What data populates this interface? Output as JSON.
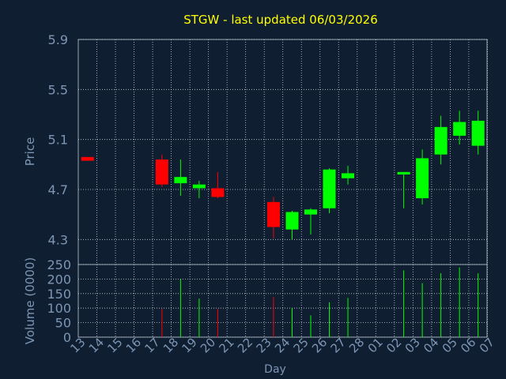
{
  "chart_data": [
    {
      "type": "candlestick",
      "title": "STGW - last updated 06/03/2026",
      "ylabel": "Price",
      "ylim": [
        4.1,
        5.9
      ],
      "yticks": [
        4.3,
        4.7,
        5.1,
        5.5,
        5.9
      ],
      "grid": true,
      "colors": {
        "up": "#00ff00",
        "down": "#ff0000"
      },
      "ohlc": [
        {
          "o": 4.96,
          "h": 4.96,
          "l": 4.93,
          "c": 4.93
        },
        {
          "o": 4.94,
          "h": 4.98,
          "l": 4.72,
          "c": 4.74
        },
        {
          "o": 4.75,
          "h": 4.94,
          "l": 4.65,
          "c": 4.8
        },
        {
          "o": 4.71,
          "h": 4.77,
          "l": 4.63,
          "c": 4.74
        },
        {
          "o": 4.71,
          "h": 4.84,
          "l": 4.63,
          "c": 4.64
        },
        {
          "o": 4.6,
          "h": 4.64,
          "l": 4.31,
          "c": 4.4
        },
        {
          "o": 4.38,
          "h": 4.53,
          "l": 4.3,
          "c": 4.52
        },
        {
          "o": 4.5,
          "h": 4.55,
          "l": 4.34,
          "c": 4.54
        },
        {
          "o": 4.55,
          "h": 4.87,
          "l": 4.51,
          "c": 4.86
        },
        {
          "o": 4.79,
          "h": 4.89,
          "l": 4.74,
          "c": 4.83
        },
        {
          "o": 4.82,
          "h": 4.84,
          "l": 4.55,
          "c": 4.84
        },
        {
          "o": 4.63,
          "h": 5.02,
          "l": 4.58,
          "c": 4.95
        },
        {
          "o": 4.98,
          "h": 5.29,
          "l": 4.9,
          "c": 5.2
        },
        {
          "o": 5.13,
          "h": 5.33,
          "l": 5.06,
          "c": 5.24
        },
        {
          "o": 5.05,
          "h": 5.33,
          "l": 4.98,
          "c": 5.25
        }
      ],
      "candle_slots": [
        0,
        4,
        5,
        6,
        7,
        10,
        11,
        12,
        13,
        14,
        17,
        18,
        19,
        20,
        21
      ]
    },
    {
      "type": "bar",
      "ylabel": "Volume (0000)",
      "ylim": [
        0,
        250
      ],
      "yticks": [
        0,
        50,
        100,
        150,
        200,
        250
      ],
      "xlabel": "Day",
      "grid": true,
      "categories": [
        "13",
        "14",
        "15",
        "16",
        "17",
        "18",
        "19",
        "20",
        "21",
        "22",
        "23",
        "24",
        "25",
        "26",
        "27",
        "28",
        "01",
        "02",
        "03",
        "04",
        "05",
        "06",
        "07"
      ],
      "series": [
        {
          "values": [
            0,
            0,
            0,
            0,
            97,
            200,
            133,
            97,
            0,
            0,
            138,
            100,
            75,
            120,
            135,
            0,
            0,
            230,
            186,
            220,
            240,
            220,
            0
          ],
          "colors": [
            "",
            "",
            "",
            "",
            "#ff0000",
            "#00ff00",
            "#00ff00",
            "#ff0000",
            "",
            "",
            "#ff0000",
            "#00ff00",
            "#00ff00",
            "#00ff00",
            "#00ff00",
            "",
            "",
            "#00ff00",
            "#00ff00",
            "#00ff00",
            "#00ff00",
            "#00ff00",
            ""
          ]
        }
      ]
    }
  ]
}
